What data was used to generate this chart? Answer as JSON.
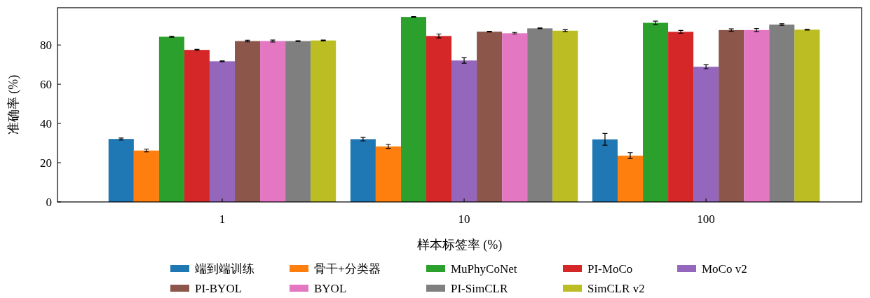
{
  "chart_data": {
    "type": "bar",
    "xlabel": "样本标签率 (%)",
    "ylabel": "准确率 (%)",
    "categories": [
      "1",
      "10",
      "100"
    ],
    "ylim": [
      0,
      99
    ],
    "yticks": [
      0,
      20,
      40,
      60,
      80
    ],
    "grid": false,
    "legend": "bottom",
    "series": [
      {
        "name": "端到端训练",
        "color": "#1f77b4",
        "values": [
          32.1,
          32.0,
          31.9
        ],
        "errors": [
          0.5,
          0.9,
          3.0
        ]
      },
      {
        "name": "骨干+分类器",
        "color": "#ff7f0e",
        "values": [
          26.2,
          28.3,
          23.6
        ],
        "errors": [
          0.7,
          1.0,
          1.5
        ]
      },
      {
        "name": "MuPhyCoNet",
        "color": "#2ca02c",
        "values": [
          84.2,
          94.3,
          91.3
        ],
        "errors": [
          0.3,
          0.2,
          0.9
        ]
      },
      {
        "name": "PI-MoCo",
        "color": "#d62728",
        "values": [
          77.5,
          84.6,
          86.7
        ],
        "errors": [
          0.3,
          1.0,
          0.7
        ]
      },
      {
        "name": "MoCo v2",
        "color": "#9467bd",
        "values": [
          71.7,
          72.1,
          68.9
        ],
        "errors": [
          0.2,
          1.4,
          1.0
        ]
      },
      {
        "name": "PI-BYOL",
        "color": "#8c564b",
        "values": [
          82.0,
          86.8,
          87.6
        ],
        "errors": [
          0.4,
          0.2,
          0.6
        ]
      },
      {
        "name": "BYOL",
        "color": "#e377c2",
        "values": [
          82.0,
          86.0,
          87.6
        ],
        "errors": [
          0.5,
          0.4,
          0.8
        ]
      },
      {
        "name": "PI-SimCLR",
        "color": "#7f7f7f",
        "values": [
          82.0,
          88.5,
          90.4
        ],
        "errors": [
          0.2,
          0.2,
          0.4
        ]
      },
      {
        "name": "SimCLR v2",
        "color": "#bcbd22",
        "values": [
          82.3,
          87.3,
          87.8
        ],
        "errors": [
          0.2,
          0.5,
          0.2
        ]
      }
    ]
  }
}
